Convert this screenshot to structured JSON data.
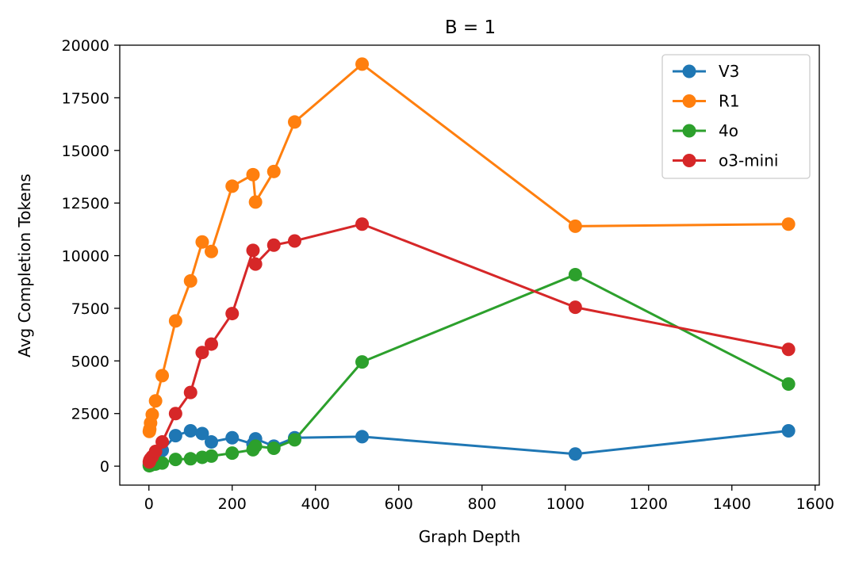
{
  "chart_data": {
    "type": "line",
    "title": "B = 1",
    "xlabel": "Graph Depth",
    "ylabel": "Avg Completion Tokens",
    "xlim": [
      -70,
      1610
    ],
    "ylim": [
      -900,
      20000
    ],
    "xticks": [
      0,
      200,
      400,
      600,
      800,
      1000,
      1200,
      1400,
      1600
    ],
    "yticks": [
      0,
      2500,
      5000,
      7500,
      10000,
      12500,
      15000,
      17500,
      20000
    ],
    "grid": false,
    "legend_position": "top-right",
    "series": [
      {
        "name": "V3",
        "color": "#1f77b4",
        "x": [
          1,
          2,
          4,
          8,
          16,
          32,
          64,
          100,
          128,
          150,
          200,
          250,
          256,
          300,
          350,
          512,
          1024,
          1536
        ],
        "y": [
          80,
          150,
          300,
          400,
          600,
          750,
          1450,
          1680,
          1550,
          1150,
          1350,
          1050,
          1300,
          950,
          1350,
          1400,
          580,
          1680
        ]
      },
      {
        "name": "R1",
        "color": "#ff7f0e",
        "x": [
          1,
          2,
          4,
          8,
          16,
          32,
          64,
          100,
          128,
          150,
          200,
          250,
          256,
          300,
          350,
          512,
          1024,
          1536
        ],
        "y": [
          1650,
          1750,
          2050,
          2450,
          3100,
          4300,
          6900,
          8800,
          10650,
          10200,
          13300,
          13850,
          12550,
          14000,
          16350,
          19100,
          11400,
          11500
        ]
      },
      {
        "name": "4o",
        "color": "#2ca02c",
        "x": [
          1,
          2,
          4,
          8,
          16,
          32,
          64,
          100,
          128,
          150,
          200,
          250,
          256,
          300,
          350,
          512,
          1024,
          1536
        ],
        "y": [
          20,
          30,
          50,
          80,
          100,
          150,
          320,
          350,
          420,
          480,
          620,
          780,
          950,
          850,
          1250,
          4950,
          9100,
          3900
        ]
      },
      {
        "name": "o3-mini",
        "color": "#d62728",
        "x": [
          1,
          2,
          4,
          8,
          16,
          32,
          64,
          100,
          128,
          150,
          200,
          250,
          256,
          300,
          350,
          512,
          1024,
          1536
        ],
        "y": [
          200,
          280,
          350,
          450,
          700,
          1150,
          2500,
          3500,
          5400,
          5800,
          7250,
          10250,
          9600,
          10500,
          10700,
          11500,
          7550,
          5550
        ]
      }
    ]
  }
}
